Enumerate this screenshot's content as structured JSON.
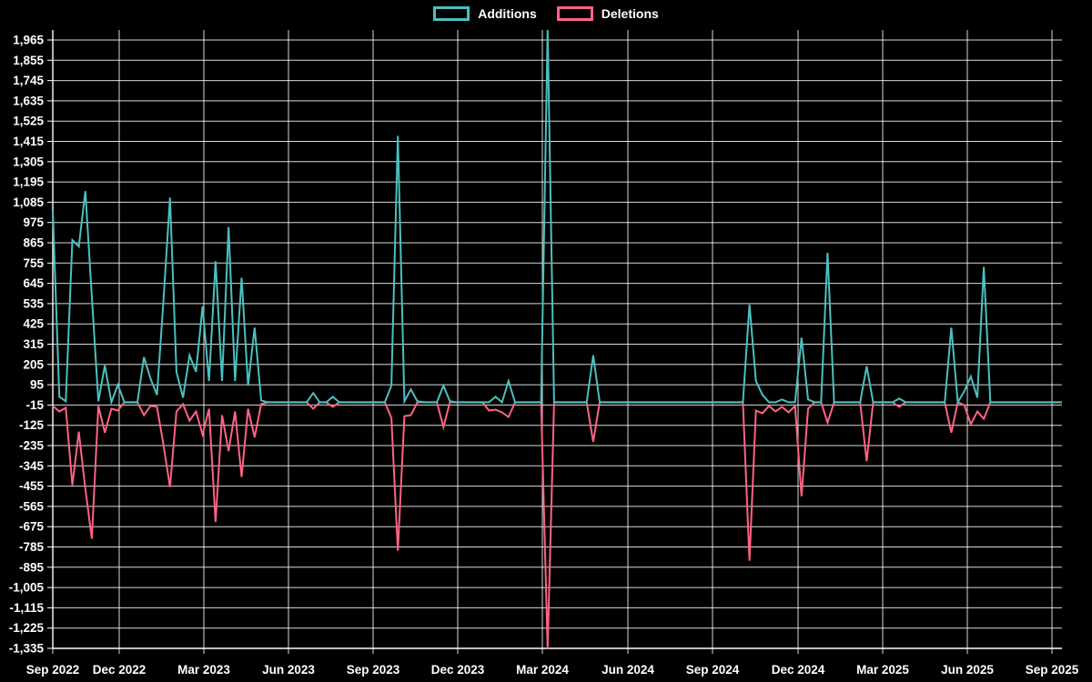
{
  "chart_data": {
    "type": "line",
    "title": "",
    "legend_position": "top",
    "background": "#000000",
    "grid_color": "#ffffff",
    "text_color": "#ffffff",
    "x_unit": "week",
    "x_range": [
      "Sep 2022",
      "Sep 2025"
    ],
    "x_tick_labels": [
      "Sep 2022",
      "Dec 2022",
      "Mar 2023",
      "Jun 2023",
      "Sep 2023",
      "Dec 2023",
      "Mar 2024",
      "Jun 2024",
      "Sep 2024",
      "Dec 2024",
      "Mar 2025",
      "Jun 2025",
      "Sep 2025"
    ],
    "y_tick_labels": [
      "1,965",
      "1,855",
      "1,745",
      "1,635",
      "1,525",
      "1,415",
      "1,305",
      "1,195",
      "1,085",
      "975",
      "865",
      "755",
      "645",
      "535",
      "425",
      "315",
      "205",
      "95",
      "-15",
      "-125",
      "-235",
      "-345",
      "-455",
      "-565",
      "-675",
      "-785",
      "-895",
      "-1,005",
      "-1,115",
      "-1,225",
      "-1,335"
    ],
    "y_max": 1965,
    "y_min": -1335,
    "y_step": 110,
    "series": [
      {
        "name": "Additions",
        "color": "#4bc0c0",
        "values": [
          1040,
          30,
          5,
          880,
          845,
          1145,
          575,
          5,
          200,
          0,
          95,
          0,
          0,
          0,
          245,
          130,
          40,
          550,
          1110,
          165,
          25,
          255,
          165,
          520,
          115,
          765,
          115,
          950,
          115,
          675,
          90,
          405,
          10,
          0,
          0,
          0,
          0,
          0,
          0,
          0,
          50,
          0,
          0,
          30,
          0,
          0,
          0,
          0,
          0,
          0,
          0,
          0,
          90,
          1445,
          5,
          70,
          5,
          0,
          0,
          0,
          90,
          5,
          0,
          0,
          0,
          0,
          0,
          0,
          30,
          0,
          115,
          0,
          0,
          0,
          0,
          0,
          2020,
          0,
          0,
          0,
          0,
          0,
          0,
          255,
          0,
          0,
          0,
          0,
          0,
          0,
          0,
          0,
          0,
          0,
          0,
          0,
          0,
          0,
          0,
          0,
          0,
          0,
          0,
          0,
          0,
          0,
          0,
          530,
          115,
          40,
          0,
          0,
          15,
          0,
          0,
          350,
          15,
          0,
          0,
          810,
          0,
          0,
          0,
          0,
          0,
          195,
          0,
          0,
          0,
          0,
          20,
          0,
          0,
          0,
          0,
          0,
          0,
          0,
          405,
          0,
          60,
          140,
          25,
          735,
          0,
          0,
          0,
          0,
          0,
          0,
          0,
          0,
          0,
          0,
          0,
          0
        ]
      },
      {
        "name": "Deletions",
        "color": "#ff6384",
        "values": [
          -20,
          -50,
          -30,
          -450,
          -160,
          -470,
          -740,
          -20,
          -165,
          -35,
          -45,
          0,
          0,
          0,
          -70,
          -20,
          -25,
          -230,
          -460,
          -50,
          -10,
          -100,
          -50,
          -175,
          -35,
          -650,
          -70,
          -265,
          -50,
          -405,
          -35,
          -190,
          -10,
          0,
          0,
          0,
          0,
          0,
          0,
          0,
          -35,
          0,
          0,
          -25,
          0,
          0,
          0,
          0,
          0,
          0,
          0,
          0,
          -85,
          -805,
          -75,
          -70,
          0,
          0,
          0,
          0,
          -135,
          0,
          0,
          0,
          0,
          0,
          0,
          -45,
          -40,
          -55,
          -80,
          0,
          0,
          0,
          0,
          0,
          -1335,
          0,
          0,
          0,
          0,
          0,
          0,
          -215,
          0,
          0,
          0,
          0,
          0,
          0,
          0,
          0,
          0,
          0,
          0,
          0,
          0,
          0,
          0,
          0,
          0,
          0,
          0,
          0,
          0,
          0,
          0,
          -860,
          -45,
          -60,
          -20,
          -50,
          -25,
          -55,
          -20,
          -510,
          -35,
          0,
          0,
          -110,
          0,
          0,
          0,
          0,
          0,
          -320,
          0,
          0,
          0,
          0,
          -25,
          0,
          0,
          0,
          0,
          0,
          0,
          0,
          -165,
          0,
          -15,
          -120,
          -50,
          -90,
          0,
          0,
          0,
          0,
          0,
          0,
          0,
          0,
          0,
          0,
          0,
          0
        ]
      }
    ]
  }
}
